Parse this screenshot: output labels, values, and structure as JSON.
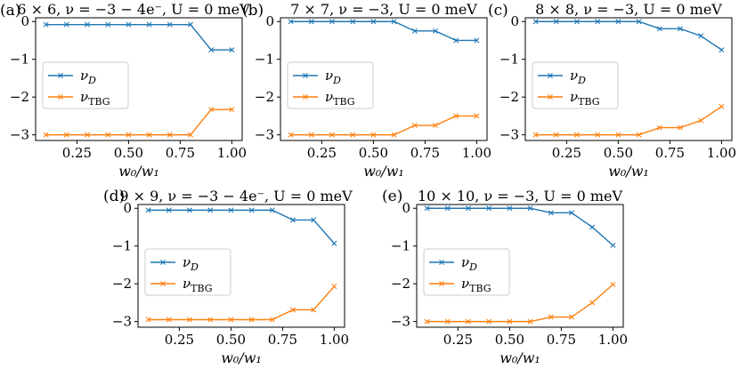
{
  "colors": {
    "nu_D": "#1f77b4",
    "nu_TBG": "#ff7f0e"
  },
  "chart_data": [
    {
      "panel": "(a)",
      "title": "6 × 6,  ν = −3 − 4e⁻,  U = 0 meV",
      "type": "line",
      "xlabel": "w₀/w₁",
      "x": [
        0.1,
        0.2,
        0.3,
        0.4,
        0.5,
        0.6,
        0.7,
        0.8,
        0.9,
        1.0
      ],
      "xlim": [
        0.05,
        1.05
      ],
      "ylim": [
        -3.15,
        0.1
      ],
      "xticks": [
        0.25,
        0.5,
        0.75,
        1.0
      ],
      "xtick_labels": [
        "0.25",
        "0.50",
        "0.75",
        "1.00"
      ],
      "yticks": [
        0,
        -1,
        -2,
        -3
      ],
      "ytick_labels": [
        "0",
        "−1",
        "−2",
        "−3"
      ],
      "series": [
        {
          "name": "ν_D",
          "label": "νD",
          "sub": "D",
          "color_key": "nu_D",
          "values": [
            -0.08,
            -0.08,
            -0.08,
            -0.08,
            -0.08,
            -0.08,
            -0.08,
            -0.08,
            -0.75,
            -0.75
          ]
        },
        {
          "name": "ν_TBG",
          "label": "νTBG",
          "sub": "TBG",
          "color_key": "nu_TBG",
          "values": [
            -3.0,
            -3.0,
            -3.0,
            -3.0,
            -3.0,
            -3.0,
            -3.0,
            -3.0,
            -2.33,
            -2.33
          ]
        }
      ],
      "legend": "center-left"
    },
    {
      "panel": "(b)",
      "title": "7 × 7,  ν = −3,  U = 0 meV",
      "type": "line",
      "xlabel": "w₀/w₁",
      "x": [
        0.1,
        0.2,
        0.3,
        0.4,
        0.5,
        0.6,
        0.7,
        0.8,
        0.9,
        1.0
      ],
      "xlim": [
        0.05,
        1.05
      ],
      "ylim": [
        -3.15,
        0.1
      ],
      "xticks": [
        0.25,
        0.5,
        0.75,
        1.0
      ],
      "xtick_labels": [
        "0.25",
        "0.50",
        "0.75",
        "1.00"
      ],
      "yticks": [
        0,
        -1,
        -2,
        -3
      ],
      "ytick_labels": [
        "0",
        "−1",
        "−2",
        "−3"
      ],
      "series": [
        {
          "name": "ν_D",
          "label": "νD",
          "sub": "D",
          "color_key": "nu_D",
          "values": [
            0.0,
            0.0,
            0.0,
            0.0,
            0.0,
            0.0,
            -0.25,
            -0.25,
            -0.5,
            -0.5
          ]
        },
        {
          "name": "ν_TBG",
          "label": "νTBG",
          "sub": "TBG",
          "color_key": "nu_TBG",
          "values": [
            -3.0,
            -3.0,
            -3.0,
            -3.0,
            -3.0,
            -3.0,
            -2.75,
            -2.75,
            -2.5,
            -2.5
          ]
        }
      ],
      "legend": "center-left"
    },
    {
      "panel": "(c)",
      "title": "8 × 8,  ν = −3,  U = 0 meV",
      "type": "line",
      "xlabel": "w₀/w₁",
      "x": [
        0.1,
        0.2,
        0.3,
        0.4,
        0.5,
        0.6,
        0.7,
        0.8,
        0.9,
        1.0
      ],
      "xlim": [
        0.05,
        1.05
      ],
      "ylim": [
        -3.15,
        0.1
      ],
      "xticks": [
        0.25,
        0.5,
        0.75,
        1.0
      ],
      "xtick_labels": [
        "0.25",
        "0.50",
        "0.75",
        "1.00"
      ],
      "yticks": [
        0,
        -1,
        -2,
        -3
      ],
      "ytick_labels": [
        "0",
        "−1",
        "−2",
        "−3"
      ],
      "series": [
        {
          "name": "ν_D",
          "label": "νD",
          "sub": "D",
          "color_key": "nu_D",
          "values": [
            0.0,
            0.0,
            0.0,
            0.0,
            0.0,
            0.0,
            -0.19,
            -0.19,
            -0.38,
            -0.75
          ]
        },
        {
          "name": "ν_TBG",
          "label": "νTBG",
          "sub": "TBG",
          "color_key": "nu_TBG",
          "values": [
            -3.0,
            -3.0,
            -3.0,
            -3.0,
            -3.0,
            -3.0,
            -2.81,
            -2.81,
            -2.62,
            -2.25
          ]
        }
      ],
      "legend": "center-left"
    },
    {
      "panel": "(d)",
      "title": "9 × 9,  ν = −3 − 4e⁻,  U = 0 meV",
      "type": "line",
      "xlabel": "w₀/w₁",
      "x": [
        0.1,
        0.2,
        0.3,
        0.4,
        0.5,
        0.6,
        0.7,
        0.8,
        0.9,
        1.0
      ],
      "xlim": [
        0.05,
        1.05
      ],
      "ylim": [
        -3.15,
        0.1
      ],
      "xticks": [
        0.25,
        0.5,
        0.75,
        1.0
      ],
      "xtick_labels": [
        "0.25",
        "0.50",
        "0.75",
        "1.00"
      ],
      "yticks": [
        0,
        -1,
        -2,
        -3
      ],
      "ytick_labels": [
        "0",
        "−1",
        "−2",
        "−3"
      ],
      "series": [
        {
          "name": "ν_D",
          "label": "νD",
          "sub": "D",
          "color_key": "nu_D",
          "values": [
            -0.05,
            -0.05,
            -0.05,
            -0.05,
            -0.05,
            -0.05,
            -0.05,
            -0.31,
            -0.31,
            -0.93
          ]
        },
        {
          "name": "ν_TBG",
          "label": "νTBG",
          "sub": "TBG",
          "color_key": "nu_TBG",
          "values": [
            -2.95,
            -2.95,
            -2.95,
            -2.95,
            -2.95,
            -2.95,
            -2.95,
            -2.69,
            -2.69,
            -2.07
          ]
        }
      ],
      "legend": "center-left"
    },
    {
      "panel": "(e)",
      "title": "10 × 10,  ν = −3,  U = 0 meV",
      "type": "line",
      "xlabel": "w₀/w₁",
      "x": [
        0.1,
        0.2,
        0.3,
        0.4,
        0.5,
        0.6,
        0.7,
        0.8,
        0.9,
        1.0
      ],
      "xlim": [
        0.05,
        1.05
      ],
      "ylim": [
        -3.15,
        0.1
      ],
      "xticks": [
        0.25,
        0.5,
        0.75,
        1.0
      ],
      "xtick_labels": [
        "0.25",
        "0.50",
        "0.75",
        "1.00"
      ],
      "yticks": [
        0,
        -1,
        -2,
        -3
      ],
      "ytick_labels": [
        "0",
        "−1",
        "−2",
        "−3"
      ],
      "series": [
        {
          "name": "ν_D",
          "label": "νD",
          "sub": "D",
          "color_key": "nu_D",
          "values": [
            0.0,
            0.0,
            0.0,
            0.0,
            0.0,
            0.0,
            -0.12,
            -0.12,
            -0.5,
            -0.98
          ]
        },
        {
          "name": "ν_TBG",
          "label": "νTBG",
          "sub": "TBG",
          "color_key": "nu_TBG",
          "values": [
            -3.0,
            -3.0,
            -3.0,
            -3.0,
            -3.0,
            -3.0,
            -2.88,
            -2.88,
            -2.5,
            -2.02
          ]
        }
      ],
      "legend": "center-left"
    }
  ]
}
